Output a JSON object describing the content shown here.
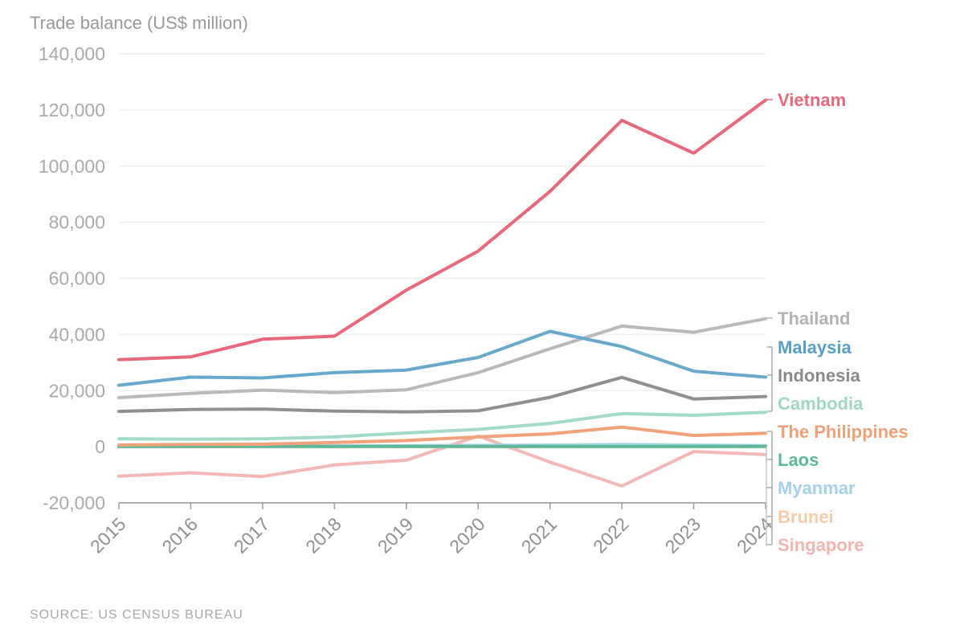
{
  "chart_data": {
    "type": "line",
    "ylabel": "Trade balance (US$ million)",
    "source": "SOURCE: US CENSUS BUREAU",
    "ylim": [
      -20000,
      140000
    ],
    "yticks": [
      -20000,
      0,
      20000,
      40000,
      60000,
      80000,
      100000,
      120000,
      140000
    ],
    "ytick_labels": [
      "-20,000",
      "0",
      "20,000",
      "40,000",
      "60,000",
      "80,000",
      "100,000",
      "120,000",
      "140,000"
    ],
    "x": [
      "2015",
      "2016",
      "2017",
      "2018",
      "2019",
      "2020",
      "2021",
      "2022",
      "2023",
      "2024"
    ],
    "series": [
      {
        "name": "Singapore",
        "color": "#f3b8b6",
        "values": [
          -10500,
          -9300,
          -10600,
          -6500,
          -4800,
          3800,
          -5500,
          -14000,
          -1700,
          -2800
        ]
      },
      {
        "name": "Brunei",
        "color": "#f6c9a8",
        "values": [
          0,
          0,
          0,
          0,
          0,
          0,
          0,
          0,
          0,
          0
        ]
      },
      {
        "name": "Myanmar",
        "color": "#a9d5ea",
        "values": [
          0,
          200,
          250,
          300,
          350,
          500,
          600,
          800,
          600,
          400
        ]
      },
      {
        "name": "Laos",
        "color": "#5db89a",
        "values": [
          100,
          100,
          100,
          100,
          100,
          100,
          100,
          100,
          100,
          100
        ]
      },
      {
        "name": "The Philippines",
        "color": "#f2a27a",
        "values": [
          600,
          800,
          900,
          1500,
          2200,
          3500,
          4600,
          7000,
          4000,
          4800
        ]
      },
      {
        "name": "Cambodia",
        "color": "#a3dbc7",
        "values": [
          2800,
          2700,
          2800,
          3500,
          4900,
          6200,
          8300,
          11800,
          11200,
          12300
        ]
      },
      {
        "name": "Indonesia",
        "color": "#8f8f8f",
        "values": [
          12600,
          13300,
          13400,
          12700,
          12400,
          12800,
          17600,
          24700,
          17000,
          17900
        ]
      },
      {
        "name": "Thailand",
        "color": "#b9b9b9",
        "values": [
          17500,
          19000,
          20200,
          19300,
          20300,
          26400,
          34900,
          43000,
          40800,
          45600
        ]
      },
      {
        "name": "Malaysia",
        "color": "#67a8cb",
        "values": [
          21900,
          24800,
          24500,
          26400,
          27300,
          31800,
          41100,
          35700,
          26900,
          24800
        ]
      },
      {
        "name": "Vietnam",
        "color": "#e9677a",
        "values": [
          31000,
          32000,
          38300,
          39400,
          55800,
          69700,
          91000,
          116300,
          104600,
          123500
        ]
      }
    ],
    "legend": [
      {
        "name": "Vietnam",
        "color": "#e9677a"
      },
      {
        "name": "Thailand",
        "color": "#b3b3b3"
      },
      {
        "name": "Malaysia",
        "color": "#5a9ec4"
      },
      {
        "name": "Indonesia",
        "color": "#8a8a8a"
      },
      {
        "name": "Cambodia",
        "color": "#9fd7c3"
      },
      {
        "name": "The Philippines",
        "color": "#f0a076"
      },
      {
        "name": "Laos",
        "color": "#5db89a"
      },
      {
        "name": "Myanmar",
        "color": "#a3d2e8"
      },
      {
        "name": "Brunei",
        "color": "#f6cba8"
      },
      {
        "name": "Singapore",
        "color": "#f2b3b1"
      }
    ]
  }
}
